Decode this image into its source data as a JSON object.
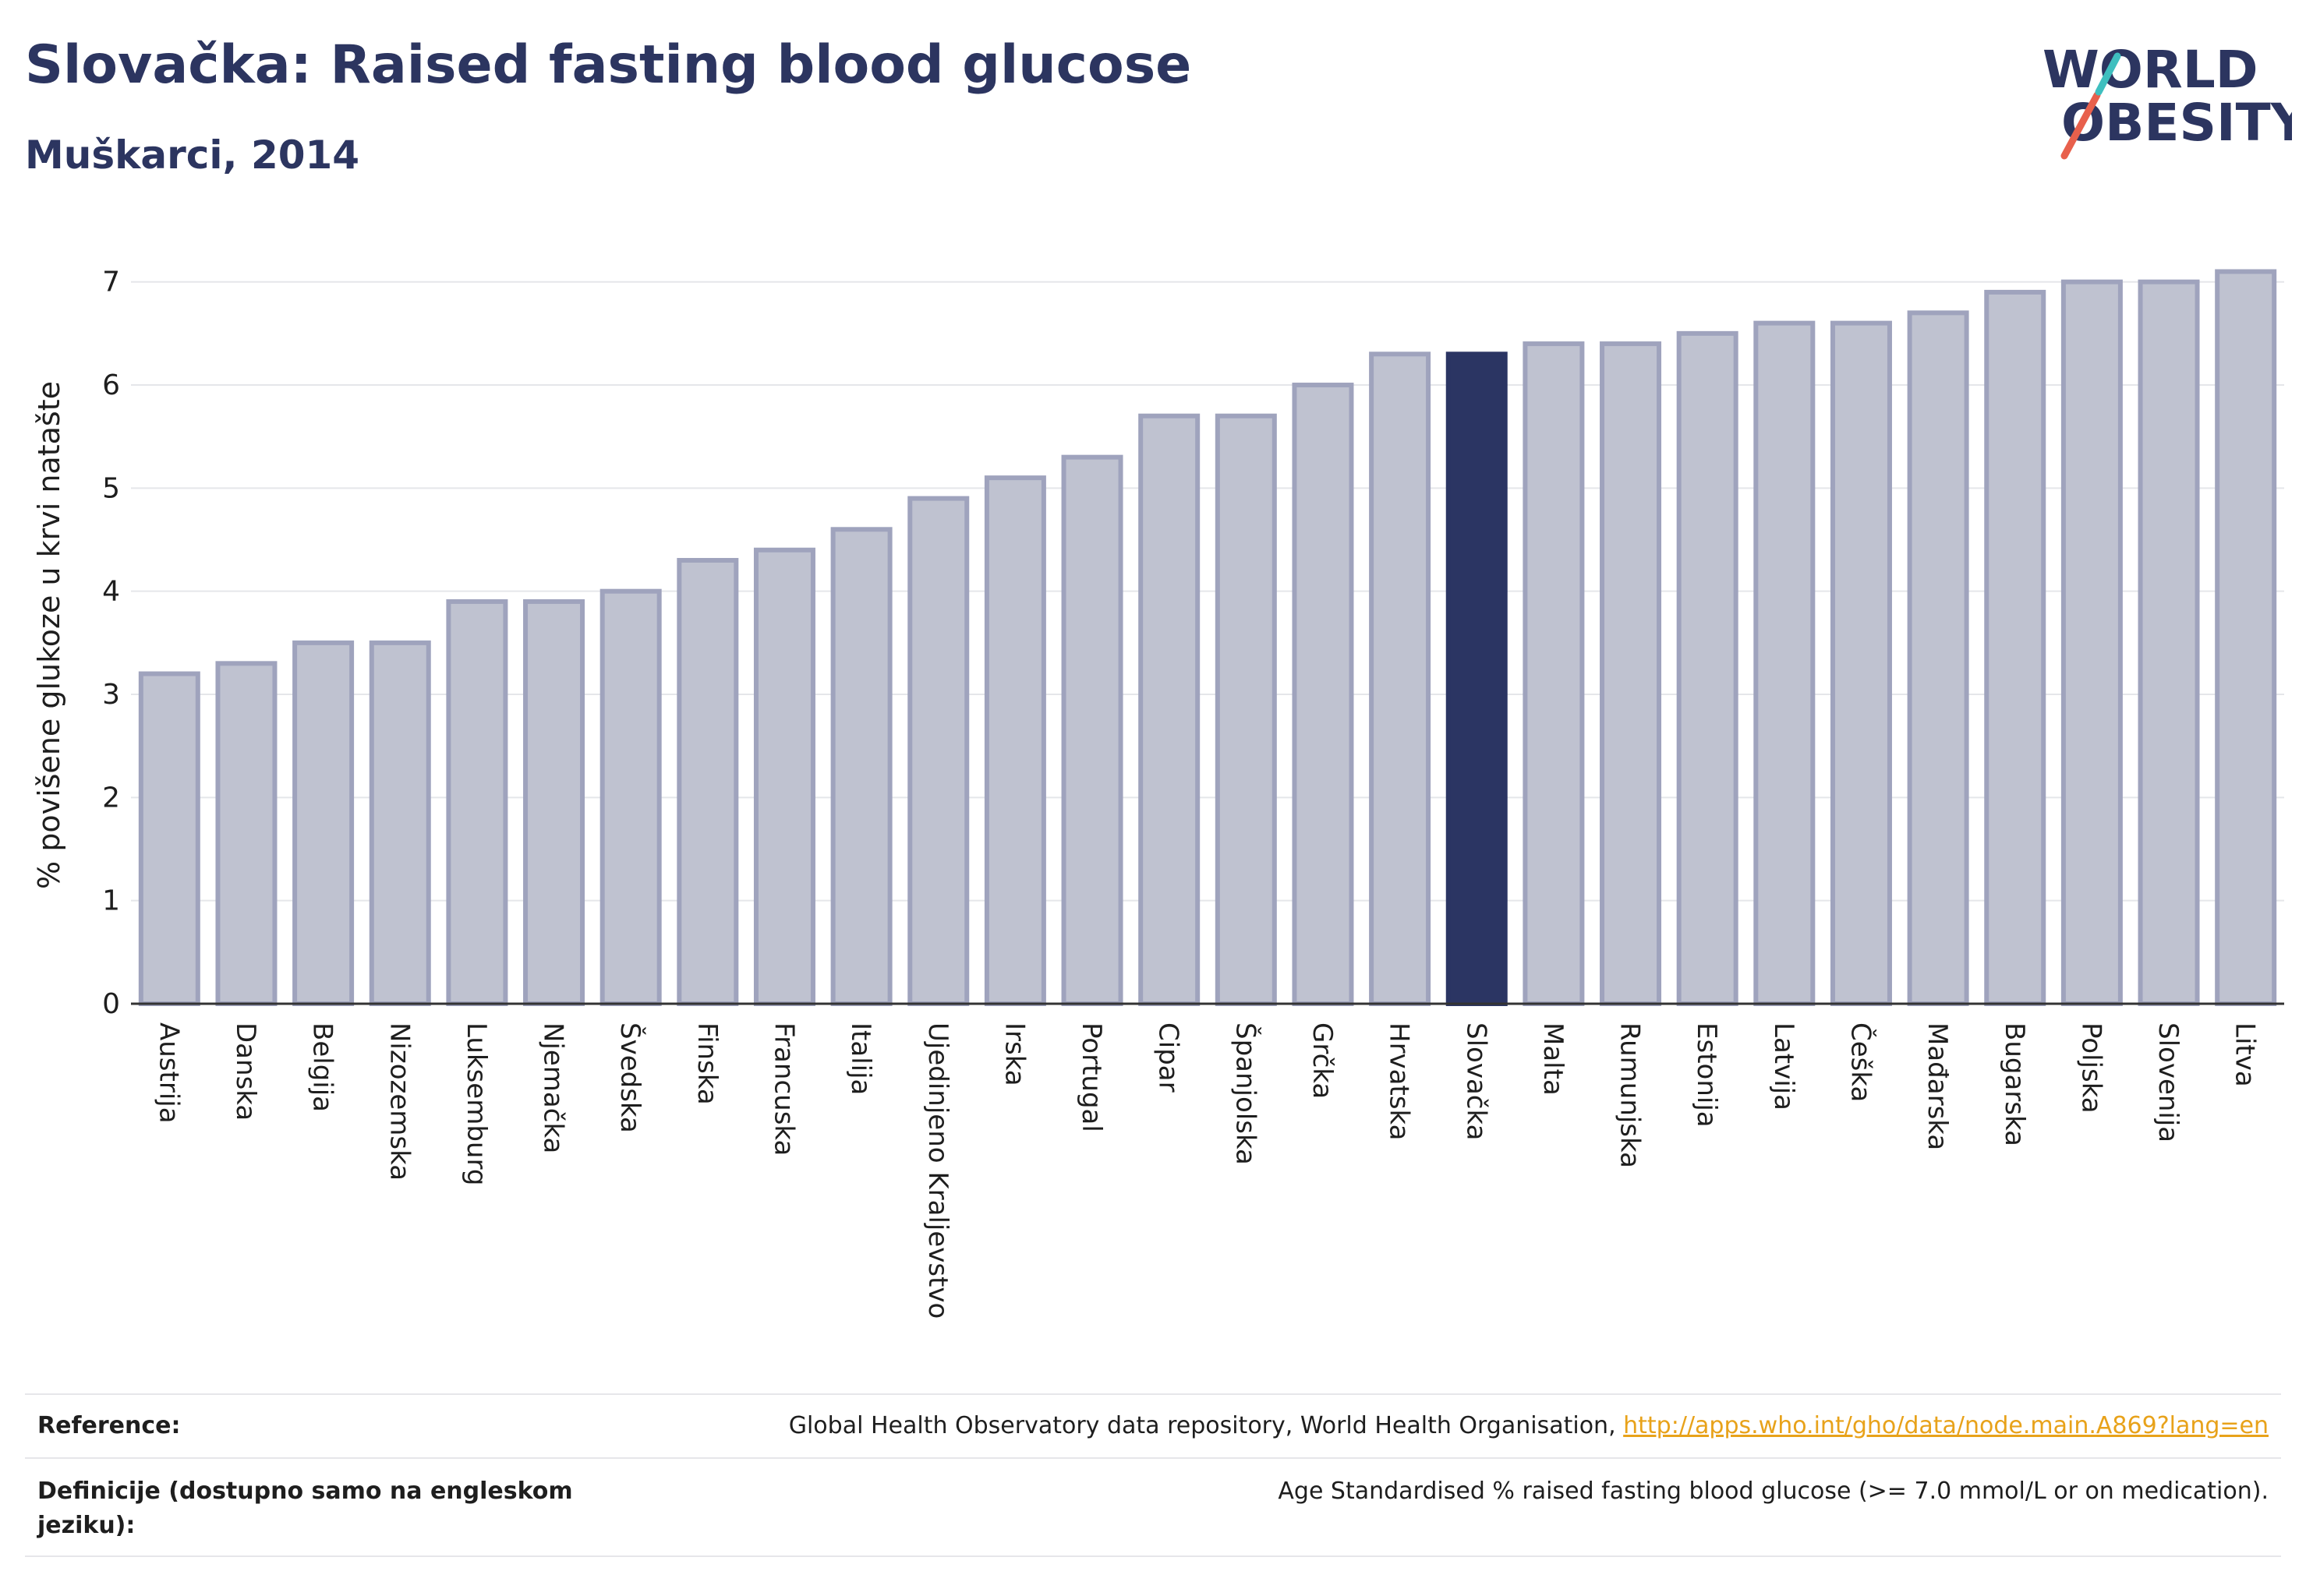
{
  "title": "Slovačka: Raised fasting blood glucose",
  "subtitle": "Muškarci, 2014",
  "logo": {
    "line1": "WORLD",
    "line2": "OBESITY"
  },
  "colors": {
    "bar": "#bfc2d0",
    "bar_stroke": "#9fa3bd",
    "highlight": "#2b3563",
    "grid": "#e5e6ea",
    "axis": "#333333",
    "link": "#e8a21a"
  },
  "chart_data": {
    "type": "bar",
    "ylabel": "% povišene glukoze u krvi natašte",
    "ylim": [
      0,
      7.3
    ],
    "yticks": [
      0,
      1,
      2,
      3,
      4,
      5,
      6,
      7
    ],
    "grid": true,
    "highlight": "Slovačka",
    "categories": [
      "Austrija",
      "Danska",
      "Belgija",
      "Nizozemska",
      "Luksemburg",
      "Njemačka",
      "Švedska",
      "Finska",
      "Francuska",
      "Italija",
      "Ujedinjeno Kraljevstvo",
      "Irska",
      "Portugal",
      "Cipar",
      "Španjolska",
      "Grčka",
      "Hrvatska",
      "Slovačka",
      "Malta",
      "Rumunjska",
      "Estonija",
      "Latvija",
      "Češka",
      "Mađarska",
      "Bugarska",
      "Poljska",
      "Slovenija",
      "Litva"
    ],
    "values": [
      3.2,
      3.3,
      3.5,
      3.5,
      3.9,
      3.9,
      4.0,
      4.3,
      4.4,
      4.6,
      4.9,
      5.1,
      5.3,
      5.7,
      5.7,
      6.0,
      6.3,
      6.3,
      6.4,
      6.4,
      6.5,
      6.6,
      6.6,
      6.7,
      6.9,
      7.0,
      7.0,
      7.1
    ]
  },
  "footer": {
    "reference_label": "Reference:",
    "reference_text": "Global Health Observatory data repository, World Health Organisation, ",
    "reference_link": "http://apps.who.int/gho/data/node.main.A869?lang=en",
    "definition_label": "Definicije (dostupno samo na engleskom jeziku):",
    "definition_text": "Age Standardised % raised fasting blood glucose (>= 7.0 mmol/L or on medication)."
  }
}
